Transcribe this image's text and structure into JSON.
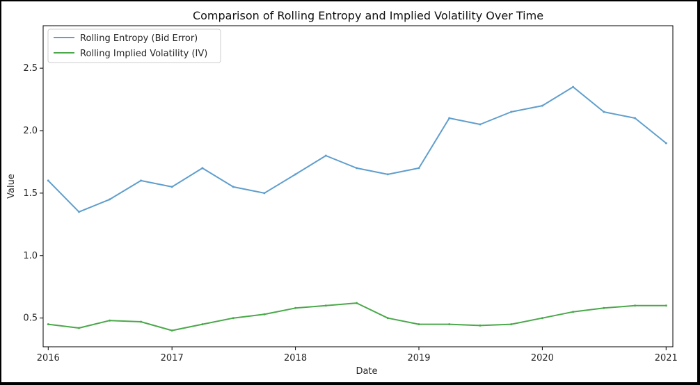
{
  "chart_data": {
    "type": "line",
    "title": "Comparison of Rolling Entropy and Implied Volatility Over Time",
    "xlabel": "Date",
    "ylabel": "Value",
    "x_ticks": [
      "2016",
      "2017",
      "2018",
      "2019",
      "2020",
      "2021"
    ],
    "y_ticks": [
      "0.5",
      "1.0",
      "1.5",
      "2.0",
      "2.5"
    ],
    "xlim": [
      "2015-12-17",
      "2021-01-21"
    ],
    "ylim": [
      0.27,
      2.84
    ],
    "grid": false,
    "legend_position": "top-left",
    "x": [
      "2016-01-01",
      "2016-04-01",
      "2016-07-01",
      "2016-10-01",
      "2017-01-01",
      "2017-04-01",
      "2017-07-01",
      "2017-10-01",
      "2018-01-01",
      "2018-04-01",
      "2018-07-01",
      "2018-10-01",
      "2019-01-01",
      "2019-04-01",
      "2019-07-01",
      "2019-10-01",
      "2020-01-01",
      "2020-04-01",
      "2020-07-01",
      "2020-10-01",
      "2021-01-01"
    ],
    "series": [
      {
        "name": "Rolling Entropy (Bid Error)",
        "color": "#5f9ecd",
        "values": [
          1.6,
          1.35,
          1.45,
          1.6,
          1.55,
          1.7,
          1.55,
          1.5,
          1.65,
          1.8,
          1.7,
          1.65,
          1.7,
          2.1,
          2.05,
          2.15,
          2.2,
          2.35,
          2.15,
          2.1,
          1.9
        ]
      },
      {
        "name": "Rolling Implied Volatility (IV)",
        "color": "#4aa84a",
        "values": [
          0.45,
          0.42,
          0.48,
          0.47,
          0.4,
          0.45,
          0.5,
          0.53,
          0.58,
          0.6,
          0.62,
          0.5,
          0.45,
          0.45,
          0.44,
          0.45,
          0.5,
          0.55,
          0.58,
          0.6,
          0.6
        ]
      }
    ]
  }
}
